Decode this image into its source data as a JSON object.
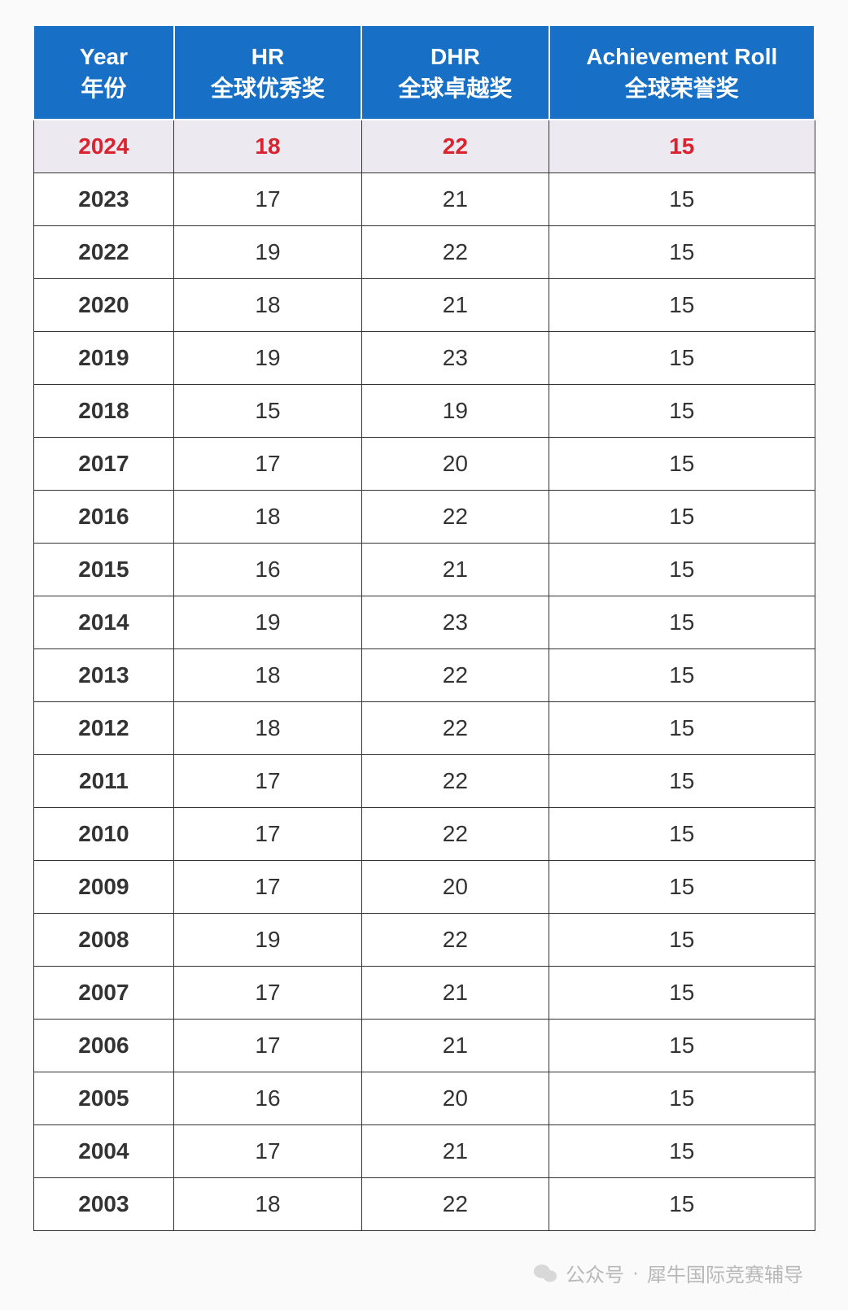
{
  "table": {
    "type": "table",
    "header_bg_color": "#1770c5",
    "header_text_color": "#ffffff",
    "highlight_row_bg": "#ece9f1",
    "highlight_text_color": "#d9232e",
    "border_color": "#333333",
    "cell_text_color": "#333333",
    "header_fontsize": 28,
    "cell_fontsize": 28,
    "columns": [
      {
        "line1": "Year",
        "line2": "年份",
        "width_pct": 18
      },
      {
        "line1": "HR",
        "line2": "全球优秀奖",
        "width_pct": 24
      },
      {
        "line1": "DHR",
        "line2": "全球卓越奖",
        "width_pct": 24
      },
      {
        "line1": "Achievement Roll",
        "line2": "全球荣誉奖",
        "width_pct": 34
      }
    ],
    "rows": [
      {
        "year": "2024",
        "hr": "18",
        "dhr": "22",
        "achievement": "15",
        "highlight": true
      },
      {
        "year": "2023",
        "hr": "17",
        "dhr": "21",
        "achievement": "15",
        "highlight": false
      },
      {
        "year": "2022",
        "hr": "19",
        "dhr": "22",
        "achievement": "15",
        "highlight": false
      },
      {
        "year": "2020",
        "hr": "18",
        "dhr": "21",
        "achievement": "15",
        "highlight": false
      },
      {
        "year": "2019",
        "hr": "19",
        "dhr": "23",
        "achievement": "15",
        "highlight": false
      },
      {
        "year": "2018",
        "hr": "15",
        "dhr": "19",
        "achievement": "15",
        "highlight": false
      },
      {
        "year": "2017",
        "hr": "17",
        "dhr": "20",
        "achievement": "15",
        "highlight": false
      },
      {
        "year": "2016",
        "hr": "18",
        "dhr": "22",
        "achievement": "15",
        "highlight": false
      },
      {
        "year": "2015",
        "hr": "16",
        "dhr": "21",
        "achievement": "15",
        "highlight": false
      },
      {
        "year": "2014",
        "hr": "19",
        "dhr": "23",
        "achievement": "15",
        "highlight": false
      },
      {
        "year": "2013",
        "hr": "18",
        "dhr": "22",
        "achievement": "15",
        "highlight": false
      },
      {
        "year": "2012",
        "hr": "18",
        "dhr": "22",
        "achievement": "15",
        "highlight": false
      },
      {
        "year": "2011",
        "hr": "17",
        "dhr": "22",
        "achievement": "15",
        "highlight": false
      },
      {
        "year": "2010",
        "hr": "17",
        "dhr": "22",
        "achievement": "15",
        "highlight": false
      },
      {
        "year": "2009",
        "hr": "17",
        "dhr": "20",
        "achievement": "15",
        "highlight": false
      },
      {
        "year": "2008",
        "hr": "19",
        "dhr": "22",
        "achievement": "15",
        "highlight": false
      },
      {
        "year": "2007",
        "hr": "17",
        "dhr": "21",
        "achievement": "15",
        "highlight": false
      },
      {
        "year": "2006",
        "hr": "17",
        "dhr": "21",
        "achievement": "15",
        "highlight": false
      },
      {
        "year": "2005",
        "hr": "16",
        "dhr": "20",
        "achievement": "15",
        "highlight": false
      },
      {
        "year": "2004",
        "hr": "17",
        "dhr": "21",
        "achievement": "15",
        "highlight": false
      },
      {
        "year": "2003",
        "hr": "18",
        "dhr": "22",
        "achievement": "15",
        "highlight": false
      }
    ]
  },
  "watermark": {
    "prefix": "公众号",
    "separator": "·",
    "name": "犀牛国际竞赛辅导",
    "text_color": "#b8b8b8",
    "fontsize": 24
  }
}
